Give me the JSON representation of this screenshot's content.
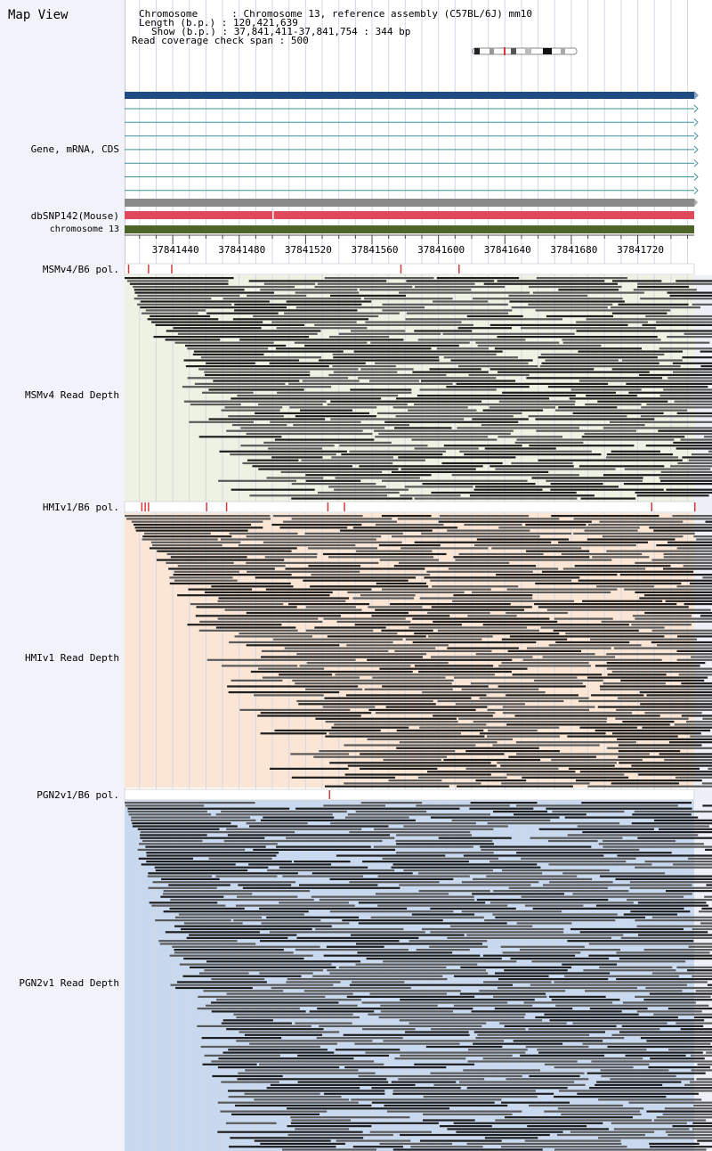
{
  "view_title": "Map View",
  "header": {
    "chromosome_label": "Chromosome",
    "chromosome_value": "Chromosome 13, reference assembly (C57BL/6J) mm10",
    "length_label": "Length (b.p.)",
    "length_value": "120,421,639",
    "show_label": "Show (b.p.)",
    "show_value": "37,841,411-37,841,754 : 344 bp",
    "coverage_label": "Read coverage check span",
    "coverage_value": "500"
  },
  "tracks": {
    "gene_label": "Gene, mRNA, CDS",
    "dbsnp_label": "dbSNP142(Mouse)",
    "chrom_label": "chromosome 13",
    "msm_pol_label": "MSMv4/B6 pol.",
    "msm_depth_label": "MSMv4 Read Depth",
    "hmi_pol_label": "HMIv1/B6 pol.",
    "hmi_depth_label": "HMIv1 Read Depth",
    "pgn_pol_label": "PGN2v1/B6 pol.",
    "pgn_depth_label": "PGN2v1 Read Depth"
  },
  "colors": {
    "gene_primary": "#1d4b82",
    "gene_secondary": "#3e8f9a",
    "gene_gray": "#8a8a8a",
    "dbsnp": "#e0485c",
    "chromosome_track": "#4e6428",
    "polymorphism_marker": "#d23c3c",
    "msm_background": "#eef2e3",
    "hmi_background": "#fbe6d6",
    "pgn_background": "#c8d8ee",
    "read_dark": "#1e1e1e",
    "read_gray": "#5a5a5a"
  },
  "chart_data": {
    "type": "genome-browser",
    "region": {
      "start": 37841411,
      "end": 37841754
    },
    "ticks": [
      37841440,
      37841480,
      37841520,
      37841560,
      37841600,
      37841640,
      37841680,
      37841720
    ],
    "polymorphisms": {
      "msm": [
        37841413,
        37841425,
        37841439,
        37841577,
        37841612
      ],
      "hmi": [
        37841421,
        37841423,
        37841425,
        37841460,
        37841472,
        37841533,
        37841543,
        37841728,
        37841754
      ],
      "pgn": [
        37841534
      ]
    },
    "dbsnp_gap": [
      37841500
    ]
  }
}
